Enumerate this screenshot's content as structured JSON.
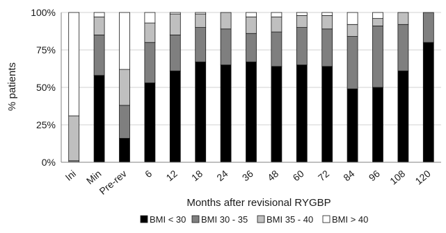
{
  "chart_data": {
    "type": "bar",
    "stacked": true,
    "normalized": true,
    "title": "",
    "xlabel": "Months after revisional RYGBP",
    "ylabel": "% patients",
    "ylim": [
      0,
      100
    ],
    "yticks": [
      "0%",
      "25%",
      "50%",
      "75%",
      "100%"
    ],
    "grid": true,
    "legend": {
      "position": "bottom"
    },
    "categories": [
      "Ini",
      "Min",
      "Pre-rev",
      "6",
      "12",
      "18",
      "24",
      "36",
      "48",
      "60",
      "72",
      "84",
      "96",
      "108",
      "120"
    ],
    "series": [
      {
        "name": "BMI < 30",
        "color": "#000000",
        "values": [
          0,
          58,
          16,
          53,
          61,
          67,
          65,
          67,
          64,
          65,
          64,
          49,
          50,
          61,
          80
        ]
      },
      {
        "name": "BMI 30 - 35",
        "color": "#7f7f7f",
        "values": [
          1,
          27,
          22,
          27,
          24,
          23,
          24,
          19,
          23,
          25,
          25,
          35,
          41,
          31,
          20
        ]
      },
      {
        "name": "BMI 35 - 40",
        "color": "#bfbfbf",
        "values": [
          30,
          12,
          24,
          13,
          14,
          9,
          11,
          11,
          10,
          8,
          9,
          8,
          5,
          8,
          0
        ]
      },
      {
        "name": "BMI > 40",
        "color": "#ffffff",
        "values": [
          69,
          3,
          38,
          7,
          1,
          1,
          0,
          3,
          3,
          2,
          2,
          8,
          4,
          0,
          0
        ]
      }
    ]
  }
}
